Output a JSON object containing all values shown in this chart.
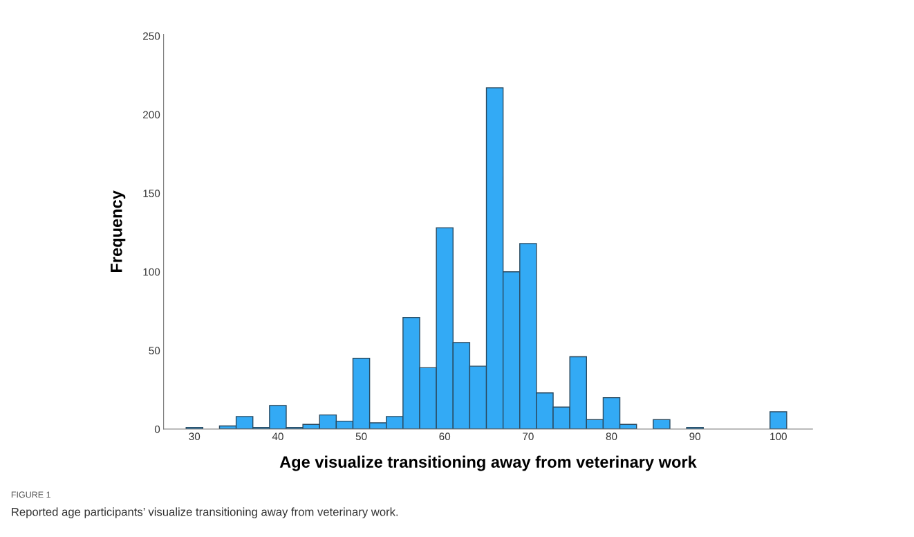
{
  "chart_data": {
    "type": "histogram",
    "xlabel": "Age visualize transitioning away from veterinary work",
    "ylabel": "Frequency",
    "bins": [
      29,
      31,
      33,
      35,
      37,
      39,
      41,
      43,
      45,
      47,
      49,
      51,
      53,
      55,
      57,
      59,
      61,
      63,
      65,
      67,
      69,
      71,
      73,
      75,
      77,
      79,
      81,
      83,
      85,
      87,
      89,
      91,
      93,
      95,
      97,
      99,
      101
    ],
    "values": [
      1,
      0,
      2,
      8,
      1,
      15,
      1,
      3,
      9,
      5,
      45,
      4,
      8,
      71,
      39,
      128,
      55,
      40,
      217,
      100,
      118,
      23,
      14,
      46,
      6,
      20,
      3,
      0,
      6,
      0,
      1,
      0,
      0,
      0,
      0,
      11
    ],
    "color": "#33aaf5",
    "xlim": [
      26.3,
      104.1
    ],
    "xticks": [
      30,
      40,
      50,
      60,
      70,
      80,
      90,
      100
    ],
    "ylim": [
      0,
      251
    ],
    "yticks": [
      0,
      50,
      100,
      150,
      200,
      250
    ],
    "grid": false,
    "legend": false,
    "annotations": [
      "FIGURE 1",
      "Reported age participants’ visualize transitioning away from veterinary work."
    ]
  }
}
